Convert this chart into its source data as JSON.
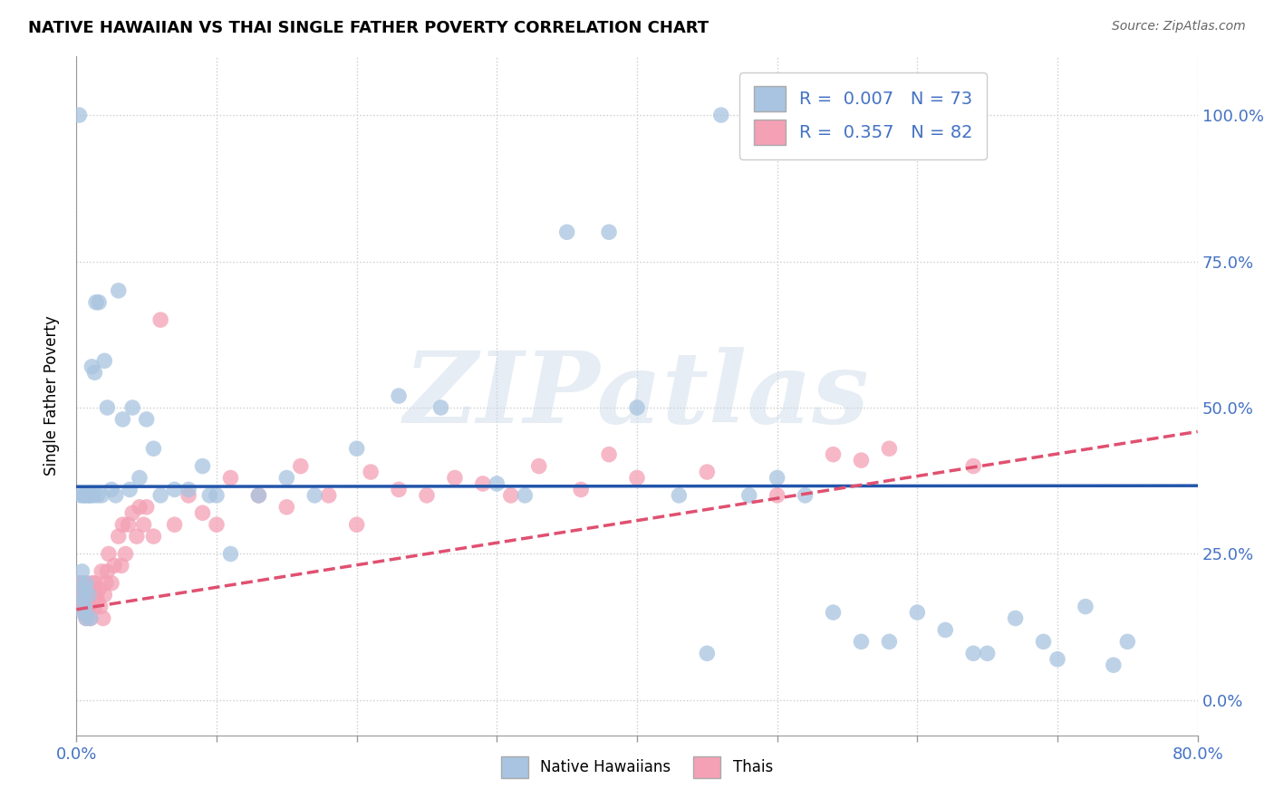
{
  "title": "NATIVE HAWAIIAN VS THAI SINGLE FATHER POVERTY CORRELATION CHART",
  "source": "Source: ZipAtlas.com",
  "ylabel": "Single Father Poverty",
  "legend_label_nh": "Native Hawaiians",
  "legend_label_thai": "Thais",
  "nh_color": "#a8c4e0",
  "thai_color": "#f4a0b5",
  "nh_line_color": "#2255aa",
  "thai_line_color": "#e05070",
  "background_color": "#ffffff",
  "watermark": "ZIPatlas",
  "xmin": 0.0,
  "xmax": 0.8,
  "ymin": -0.06,
  "ymax": 1.1,
  "nh_scatter_x": [
    0.002,
    0.003,
    0.003,
    0.004,
    0.004,
    0.005,
    0.005,
    0.005,
    0.006,
    0.006,
    0.006,
    0.007,
    0.007,
    0.008,
    0.009,
    0.009,
    0.01,
    0.01,
    0.011,
    0.012,
    0.013,
    0.014,
    0.015,
    0.016,
    0.018,
    0.02,
    0.022,
    0.025,
    0.028,
    0.03,
    0.033,
    0.038,
    0.04,
    0.045,
    0.05,
    0.055,
    0.06,
    0.07,
    0.08,
    0.09,
    0.095,
    0.1,
    0.11,
    0.13,
    0.15,
    0.17,
    0.2,
    0.23,
    0.26,
    0.3,
    0.32,
    0.35,
    0.38,
    0.4,
    0.43,
    0.45,
    0.46,
    0.48,
    0.5,
    0.52,
    0.54,
    0.56,
    0.58,
    0.6,
    0.62,
    0.64,
    0.65,
    0.67,
    0.69,
    0.7,
    0.72,
    0.74,
    0.75
  ],
  "nh_scatter_y": [
    1.0,
    0.35,
    0.2,
    0.18,
    0.22,
    0.15,
    0.17,
    0.35,
    0.16,
    0.19,
    0.35,
    0.14,
    0.2,
    0.35,
    0.18,
    0.35,
    0.14,
    0.35,
    0.57,
    0.35,
    0.56,
    0.68,
    0.35,
    0.68,
    0.35,
    0.58,
    0.5,
    0.36,
    0.35,
    0.7,
    0.48,
    0.36,
    0.5,
    0.38,
    0.48,
    0.43,
    0.35,
    0.36,
    0.36,
    0.4,
    0.35,
    0.35,
    0.25,
    0.35,
    0.38,
    0.35,
    0.43,
    0.52,
    0.5,
    0.37,
    0.35,
    0.8,
    0.8,
    0.5,
    0.35,
    0.08,
    1.0,
    0.35,
    0.38,
    0.35,
    0.15,
    0.1,
    0.1,
    0.15,
    0.12,
    0.08,
    0.08,
    0.14,
    0.1,
    0.07,
    0.16,
    0.06,
    0.1
  ],
  "thai_scatter_x": [
    0.001,
    0.001,
    0.002,
    0.002,
    0.002,
    0.003,
    0.003,
    0.003,
    0.003,
    0.004,
    0.004,
    0.004,
    0.004,
    0.005,
    0.005,
    0.005,
    0.006,
    0.006,
    0.006,
    0.007,
    0.007,
    0.007,
    0.008,
    0.008,
    0.009,
    0.009,
    0.01,
    0.01,
    0.011,
    0.012,
    0.013,
    0.013,
    0.014,
    0.015,
    0.016,
    0.017,
    0.018,
    0.019,
    0.02,
    0.021,
    0.022,
    0.023,
    0.025,
    0.027,
    0.03,
    0.032,
    0.033,
    0.035,
    0.037,
    0.04,
    0.043,
    0.045,
    0.048,
    0.05,
    0.055,
    0.06,
    0.07,
    0.08,
    0.09,
    0.1,
    0.11,
    0.13,
    0.15,
    0.16,
    0.18,
    0.2,
    0.21,
    0.23,
    0.25,
    0.27,
    0.29,
    0.31,
    0.33,
    0.36,
    0.38,
    0.4,
    0.45,
    0.5,
    0.54,
    0.56,
    0.58,
    0.64
  ],
  "thai_scatter_y": [
    0.2,
    0.18,
    0.2,
    0.17,
    0.2,
    0.18,
    0.17,
    0.2,
    0.18,
    0.16,
    0.18,
    0.2,
    0.17,
    0.16,
    0.18,
    0.19,
    0.15,
    0.17,
    0.2,
    0.14,
    0.17,
    0.19,
    0.15,
    0.18,
    0.16,
    0.19,
    0.14,
    0.17,
    0.2,
    0.18,
    0.16,
    0.2,
    0.18,
    0.17,
    0.19,
    0.16,
    0.22,
    0.14,
    0.18,
    0.2,
    0.22,
    0.25,
    0.2,
    0.23,
    0.28,
    0.23,
    0.3,
    0.25,
    0.3,
    0.32,
    0.28,
    0.33,
    0.3,
    0.33,
    0.28,
    0.65,
    0.3,
    0.35,
    0.32,
    0.3,
    0.38,
    0.35,
    0.33,
    0.4,
    0.35,
    0.3,
    0.39,
    0.36,
    0.35,
    0.38,
    0.37,
    0.35,
    0.4,
    0.36,
    0.42,
    0.38,
    0.39,
    0.35,
    0.42,
    0.41,
    0.43,
    0.4
  ],
  "nh_line_intercept": 0.365,
  "nh_line_slope": 0.002,
  "thai_line_intercept": 0.155,
  "thai_line_slope": 0.38
}
